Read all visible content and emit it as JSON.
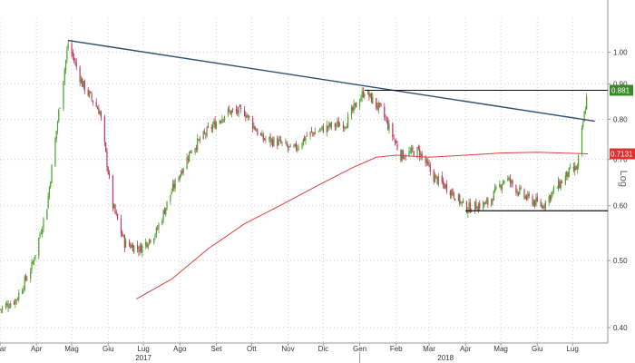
{
  "chart_data": {
    "type": "candlestick",
    "y_axis": {
      "scale": "log",
      "title": "Log",
      "ticks": [
        "1.00",
        "0.90",
        "0.80",
        "0.70",
        "0.60",
        "0.50",
        "0.40"
      ],
      "tick_values": [
        1.0,
        0.9,
        0.8,
        0.7,
        0.6,
        0.5,
        0.4
      ],
      "range": [
        0.38,
        1.12
      ],
      "side": "right"
    },
    "x_axis": {
      "range": [
        "2017-03-01",
        "2018-07-31"
      ],
      "months": [
        {
          "label": "Mar",
          "date": "2017-03-01"
        },
        {
          "label": "Apr",
          "date": "2017-04-01"
        },
        {
          "label": "Mag",
          "date": "2017-05-01"
        },
        {
          "label": "Giu",
          "date": "2017-06-01"
        },
        {
          "label": "Lug",
          "date": "2017-07-01"
        },
        {
          "label": "Ago",
          "date": "2017-08-01"
        },
        {
          "label": "Set",
          "date": "2017-09-01"
        },
        {
          "label": "Ott",
          "date": "2017-10-01"
        },
        {
          "label": "Nov",
          "date": "2017-11-01"
        },
        {
          "label": "Dic",
          "date": "2017-12-01"
        },
        {
          "label": "Gen",
          "date": "2018-01-01"
        },
        {
          "label": "Feb",
          "date": "2018-02-01"
        },
        {
          "label": "Mar",
          "date": "2018-03-01"
        },
        {
          "label": "Apr",
          "date": "2018-04-01"
        },
        {
          "label": "Mag",
          "date": "2018-05-01"
        },
        {
          "label": "Giu",
          "date": "2018-06-01"
        },
        {
          "label": "Lug",
          "date": "2018-07-01"
        }
      ],
      "years": [
        {
          "label": "2017",
          "date": "2017-07-01"
        },
        {
          "label": "2018",
          "date": "2018-03-15"
        }
      ],
      "year_divider": "2018-01-01"
    },
    "price_anchors": [
      [
        "2017-03-01",
        0.425
      ],
      [
        "2017-03-15",
        0.44
      ],
      [
        "2017-03-28",
        0.49
      ],
      [
        "2017-04-10",
        0.6
      ],
      [
        "2017-04-20",
        0.82
      ],
      [
        "2017-04-28",
        1.03
      ],
      [
        "2017-05-10",
        0.9
      ],
      [
        "2017-05-25",
        0.82
      ],
      [
        "2017-06-05",
        0.6
      ],
      [
        "2017-06-15",
        0.53
      ],
      [
        "2017-06-28",
        0.52
      ],
      [
        "2017-07-12",
        0.55
      ],
      [
        "2017-07-25",
        0.63
      ],
      [
        "2017-08-10",
        0.72
      ],
      [
        "2017-08-25",
        0.77
      ],
      [
        "2017-09-10",
        0.82
      ],
      [
        "2017-09-25",
        0.82
      ],
      [
        "2017-10-10",
        0.75
      ],
      [
        "2017-10-25",
        0.74
      ],
      [
        "2017-11-05",
        0.72
      ],
      [
        "2017-11-18",
        0.76
      ],
      [
        "2017-12-05",
        0.78
      ],
      [
        "2017-12-20",
        0.79
      ],
      [
        "2018-01-05",
        0.88
      ],
      [
        "2018-01-20",
        0.82
      ],
      [
        "2018-02-05",
        0.71
      ],
      [
        "2018-02-20",
        0.72
      ],
      [
        "2018-03-05",
        0.66
      ],
      [
        "2018-03-20",
        0.63
      ],
      [
        "2018-04-01",
        0.595
      ],
      [
        "2018-04-20",
        0.605
      ],
      [
        "2018-05-05",
        0.66
      ],
      [
        "2018-05-20",
        0.62
      ],
      [
        "2018-06-05",
        0.6
      ],
      [
        "2018-06-15",
        0.63
      ],
      [
        "2018-06-28",
        0.67
      ],
      [
        "2018-07-05",
        0.68
      ],
      [
        "2018-07-10",
        0.79
      ],
      [
        "2018-07-14",
        0.881
      ]
    ],
    "moving_average": [
      [
        "2017-06-25",
        0.44
      ],
      [
        "2017-07-25",
        0.47
      ],
      [
        "2017-08-25",
        0.52
      ],
      [
        "2017-09-25",
        0.565
      ],
      [
        "2017-10-25",
        0.6
      ],
      [
        "2017-11-25",
        0.64
      ],
      [
        "2017-12-25",
        0.68
      ],
      [
        "2018-01-15",
        0.705
      ],
      [
        "2018-02-01",
        0.71
      ],
      [
        "2018-03-01",
        0.705
      ],
      [
        "2018-04-01",
        0.71
      ],
      [
        "2018-05-01",
        0.715
      ],
      [
        "2018-06-01",
        0.717
      ],
      [
        "2018-07-14",
        0.7131
      ]
    ],
    "trendline": {
      "start": [
        "2017-04-28",
        1.04
      ],
      "end": [
        "2018-07-20",
        0.795
      ]
    },
    "resistance_line": {
      "start": [
        "2018-01-05",
        0.881
      ],
      "end": [
        "2018-07-31",
        0.881
      ]
    },
    "support_line": {
      "start": [
        "2018-04-01",
        0.59
      ],
      "end": [
        "2018-07-31",
        0.59
      ]
    },
    "last_price": {
      "value": 0.881,
      "label": "0.881"
    },
    "ma_last": {
      "value": 0.7131,
      "label": "0.7131"
    },
    "colors": {
      "up": "#4aa02c",
      "down": "#c0395a",
      "moving_average": "#e04040",
      "trendline": "#2f4e6f",
      "levels": "#111111",
      "last_price_badge": "#3a8a2a",
      "ma_badge": "#e03030",
      "grid": "#cfcfcf"
    },
    "grid": true
  }
}
